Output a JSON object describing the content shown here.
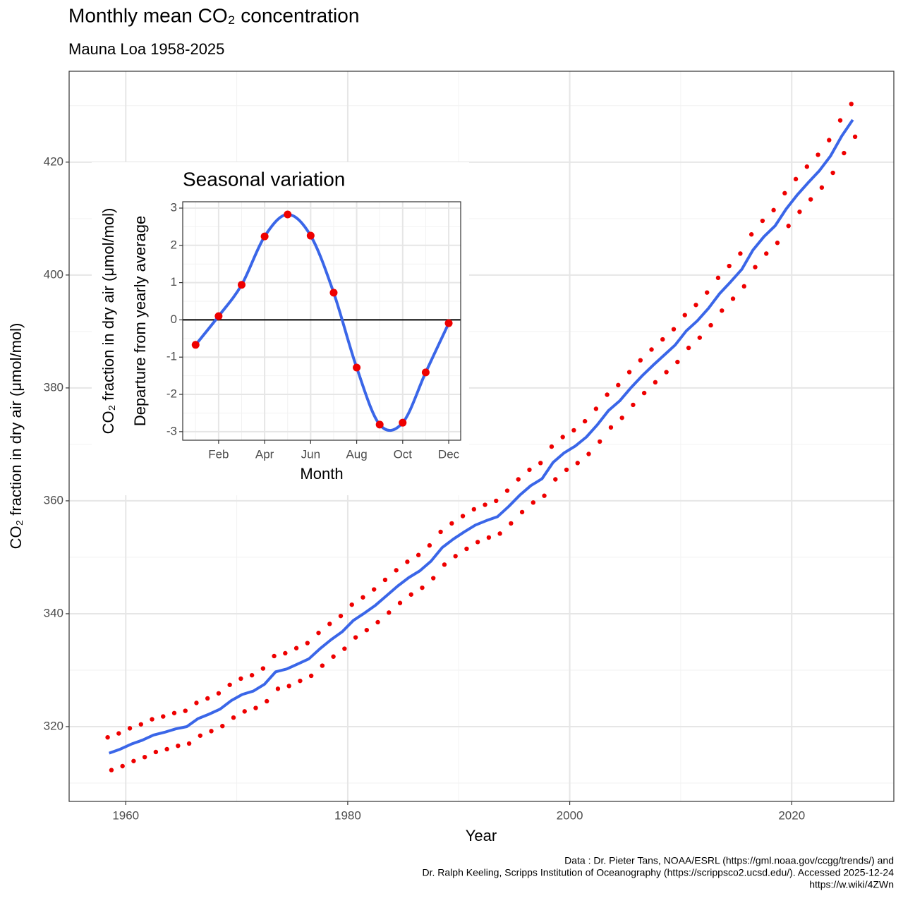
{
  "chart_data": [
    {
      "type": "scatter",
      "title": "Monthly mean CO₂ concentration",
      "subtitle": "Mauna Loa 1958-2025",
      "x_label": "Year",
      "y_label": "CO₂ fraction in dry air (μmol/mol)",
      "caption": [
        "Data : Dr. Pieter Tans, NOAA/ESRL (https://gml.noaa.gov/ccgg/trends/) and",
        "Dr. Ralph Keeling, Scripps Institution of Oceanography (https://scrippsco2.ucsd.edu/). Accessed 2025-12-24",
        "https://w.wiki/4ZWn"
      ],
      "xlim": [
        1954.9,
        2029.2
      ],
      "ylim": [
        306.75,
        436.1
      ],
      "xticks": [
        1960,
        1980,
        2000,
        2020
      ],
      "yticks": [
        320,
        340,
        360,
        380,
        400,
        420
      ],
      "xminor": [
        1970,
        1990,
        2010
      ],
      "yminor": [
        310,
        330,
        350,
        370,
        390,
        410,
        430
      ],
      "grid": true,
      "series": [
        {
          "type": "scatter",
          "color": "#ee0000",
          "x": [
            1958.37,
            1959.37,
            1960.37,
            1961.37,
            1962.37,
            1963.37,
            1964.37,
            1965.37,
            1966.37,
            1967.37,
            1968.37,
            1969.37,
            1970.37,
            1971.37,
            1972.37,
            1973.37,
            1974.37,
            1975.37,
            1976.37,
            1977.37,
            1978.37,
            1979.37,
            1980.37,
            1981.37,
            1982.37,
            1983.37,
            1984.37,
            1985.37,
            1986.37,
            1987.37,
            1988.37,
            1989.37,
            1990.37,
            1991.37,
            1992.37,
            1993.37,
            1994.37,
            1995.37,
            1996.37,
            1997.37,
            1998.37,
            1999.37,
            2000.37,
            2001.37,
            2002.37,
            2003.37,
            2004.37,
            2005.37,
            2006.37,
            2007.37,
            2008.37,
            2009.37,
            2010.37,
            2011.37,
            2012.37,
            2013.37,
            2014.37,
            2015.37,
            2016.37,
            2017.37,
            2018.37,
            2019.37,
            2020.37,
            2021.37,
            2022.37,
            2023.37,
            2024.37,
            2025.37
          ],
          "values": [
            318.1,
            318.8,
            319.7,
            320.4,
            321.3,
            321.8,
            322.4,
            322.8,
            324.2,
            325.0,
            325.9,
            327.4,
            328.5,
            329.1,
            330.3,
            332.5,
            333.0,
            333.9,
            334.8,
            336.6,
            338.2,
            339.6,
            341.6,
            342.9,
            344.3,
            346.0,
            347.7,
            349.2,
            350.4,
            352.1,
            354.5,
            356.0,
            357.3,
            358.5,
            359.3,
            360.0,
            361.8,
            363.8,
            365.5,
            366.7,
            369.6,
            371.3,
            372.5,
            374.1,
            376.3,
            378.8,
            380.5,
            382.8,
            384.9,
            386.8,
            388.6,
            390.4,
            392.9,
            394.7,
            396.9,
            399.5,
            401.6,
            403.8,
            407.2,
            409.6,
            411.5,
            414.5,
            417.0,
            419.2,
            421.3,
            423.9,
            427.4,
            430.3
          ]
        },
        {
          "type": "scatter",
          "color": "#ee0000",
          "x": [
            1958.71,
            1959.71,
            1960.71,
            1961.71,
            1962.71,
            1963.71,
            1964.71,
            1965.71,
            1966.71,
            1967.71,
            1968.71,
            1969.71,
            1970.71,
            1971.71,
            1972.71,
            1973.71,
            1974.71,
            1975.71,
            1976.71,
            1977.71,
            1978.71,
            1979.71,
            1980.71,
            1981.71,
            1982.71,
            1983.71,
            1984.71,
            1985.71,
            1986.71,
            1987.71,
            1988.71,
            1989.71,
            1990.71,
            1991.71,
            1992.71,
            1993.71,
            1994.71,
            1995.71,
            1996.71,
            1997.71,
            1998.71,
            1999.71,
            2000.71,
            2001.71,
            2002.71,
            2003.71,
            2004.71,
            2005.71,
            2006.71,
            2007.71,
            2008.71,
            2009.71,
            2010.71,
            2011.71,
            2012.71,
            2013.71,
            2014.71,
            2015.71,
            2016.71,
            2017.71,
            2018.71,
            2019.71,
            2020.71,
            2021.71,
            2022.71,
            2023.71,
            2024.71,
            2025.71
          ],
          "values": [
            312.3,
            313.0,
            313.9,
            314.6,
            315.5,
            316.0,
            316.6,
            317.0,
            318.4,
            319.2,
            320.1,
            321.6,
            322.7,
            323.3,
            324.5,
            326.7,
            327.2,
            328.1,
            329.0,
            330.8,
            332.4,
            333.8,
            335.8,
            337.1,
            338.5,
            340.2,
            341.9,
            343.4,
            344.6,
            346.3,
            348.7,
            350.2,
            351.5,
            352.7,
            353.5,
            354.2,
            356.0,
            358.0,
            359.7,
            360.9,
            363.8,
            365.5,
            366.7,
            368.3,
            370.5,
            373.0,
            374.7,
            377.0,
            379.1,
            381.0,
            382.8,
            384.6,
            387.1,
            388.9,
            391.1,
            393.7,
            395.8,
            398.0,
            401.4,
            403.8,
            405.7,
            408.7,
            411.2,
            413.4,
            415.5,
            418.1,
            421.6,
            424.5
          ]
        },
        {
          "type": "line",
          "color": "#3a66e8",
          "x": [
            1958.5,
            1959.5,
            1960.5,
            1961.5,
            1962.5,
            1963.5,
            1964.5,
            1965.5,
            1966.5,
            1967.5,
            1968.5,
            1969.5,
            1970.5,
            1971.5,
            1972.5,
            1973.5,
            1974.5,
            1975.5,
            1976.5,
            1977.5,
            1978.5,
            1979.5,
            1980.5,
            1981.5,
            1982.5,
            1983.5,
            1984.5,
            1985.5,
            1986.5,
            1987.5,
            1988.5,
            1989.5,
            1990.5,
            1991.5,
            1992.5,
            1993.5,
            1994.5,
            1995.5,
            1996.5,
            1997.5,
            1998.5,
            1999.5,
            2000.5,
            2001.5,
            2002.5,
            2003.5,
            2004.5,
            2005.5,
            2006.5,
            2007.5,
            2008.5,
            2009.5,
            2010.5,
            2011.5,
            2012.5,
            2013.5,
            2014.5,
            2015.5,
            2016.5,
            2017.5,
            2018.5,
            2019.5,
            2020.5,
            2021.5,
            2022.5,
            2023.5,
            2024.5,
            2025.5
          ],
          "values": [
            315.3,
            316.0,
            316.9,
            317.6,
            318.5,
            319.0,
            319.6,
            320.0,
            321.4,
            322.2,
            323.1,
            324.6,
            325.7,
            326.3,
            327.5,
            329.7,
            330.2,
            331.1,
            332.0,
            333.8,
            335.4,
            336.8,
            338.8,
            340.1,
            341.5,
            343.2,
            344.9,
            346.4,
            347.6,
            349.3,
            351.7,
            353.2,
            354.5,
            355.7,
            356.5,
            357.2,
            359.0,
            361.0,
            362.7,
            363.9,
            366.8,
            368.5,
            369.7,
            371.3,
            373.5,
            376.0,
            377.7,
            380.0,
            382.1,
            384.0,
            385.8,
            387.6,
            390.1,
            391.9,
            394.1,
            396.7,
            398.8,
            401.0,
            404.4,
            406.8,
            408.7,
            411.7,
            414.2,
            416.4,
            418.5,
            421.1,
            424.6,
            427.5
          ]
        }
      ]
    },
    {
      "type": "line",
      "title": "Seasonal variation",
      "x_label": "Month",
      "y_label": [
        "CO₂ fraction in dry air (μmol/mol)",
        "Departure from yearly average"
      ],
      "xlim": [
        0.44,
        12.52
      ],
      "ylim": [
        -3.23,
        3.17
      ],
      "xticks": [
        {
          "value": 2,
          "label": "Feb"
        },
        {
          "value": 4,
          "label": "Apr"
        },
        {
          "value": 6,
          "label": "Jun"
        },
        {
          "value": 8,
          "label": "Aug"
        },
        {
          "value": 10,
          "label": "Oct"
        },
        {
          "value": 12,
          "label": "Dec"
        }
      ],
      "yticks": [
        -3,
        -2,
        -1,
        0,
        1,
        2,
        3
      ],
      "xminor": [
        1,
        3,
        5,
        7,
        9,
        11
      ],
      "yminor": [
        -2.5,
        -1.5,
        -0.5,
        0.5,
        1.5,
        2.5
      ],
      "grid": true,
      "hline": 0,
      "series": [
        {
          "type": "line",
          "smooth": true,
          "color": "#ee0000",
          "line_color": "#3a66e8",
          "x": [
            1,
            2,
            3,
            4,
            5,
            6,
            7,
            8,
            9,
            10,
            11,
            12
          ],
          "values": [
            -0.67,
            0.1,
            0.94,
            2.24,
            2.83,
            2.26,
            0.73,
            -1.28,
            -2.81,
            -2.76,
            -1.41,
            -0.09
          ]
        }
      ]
    }
  ]
}
